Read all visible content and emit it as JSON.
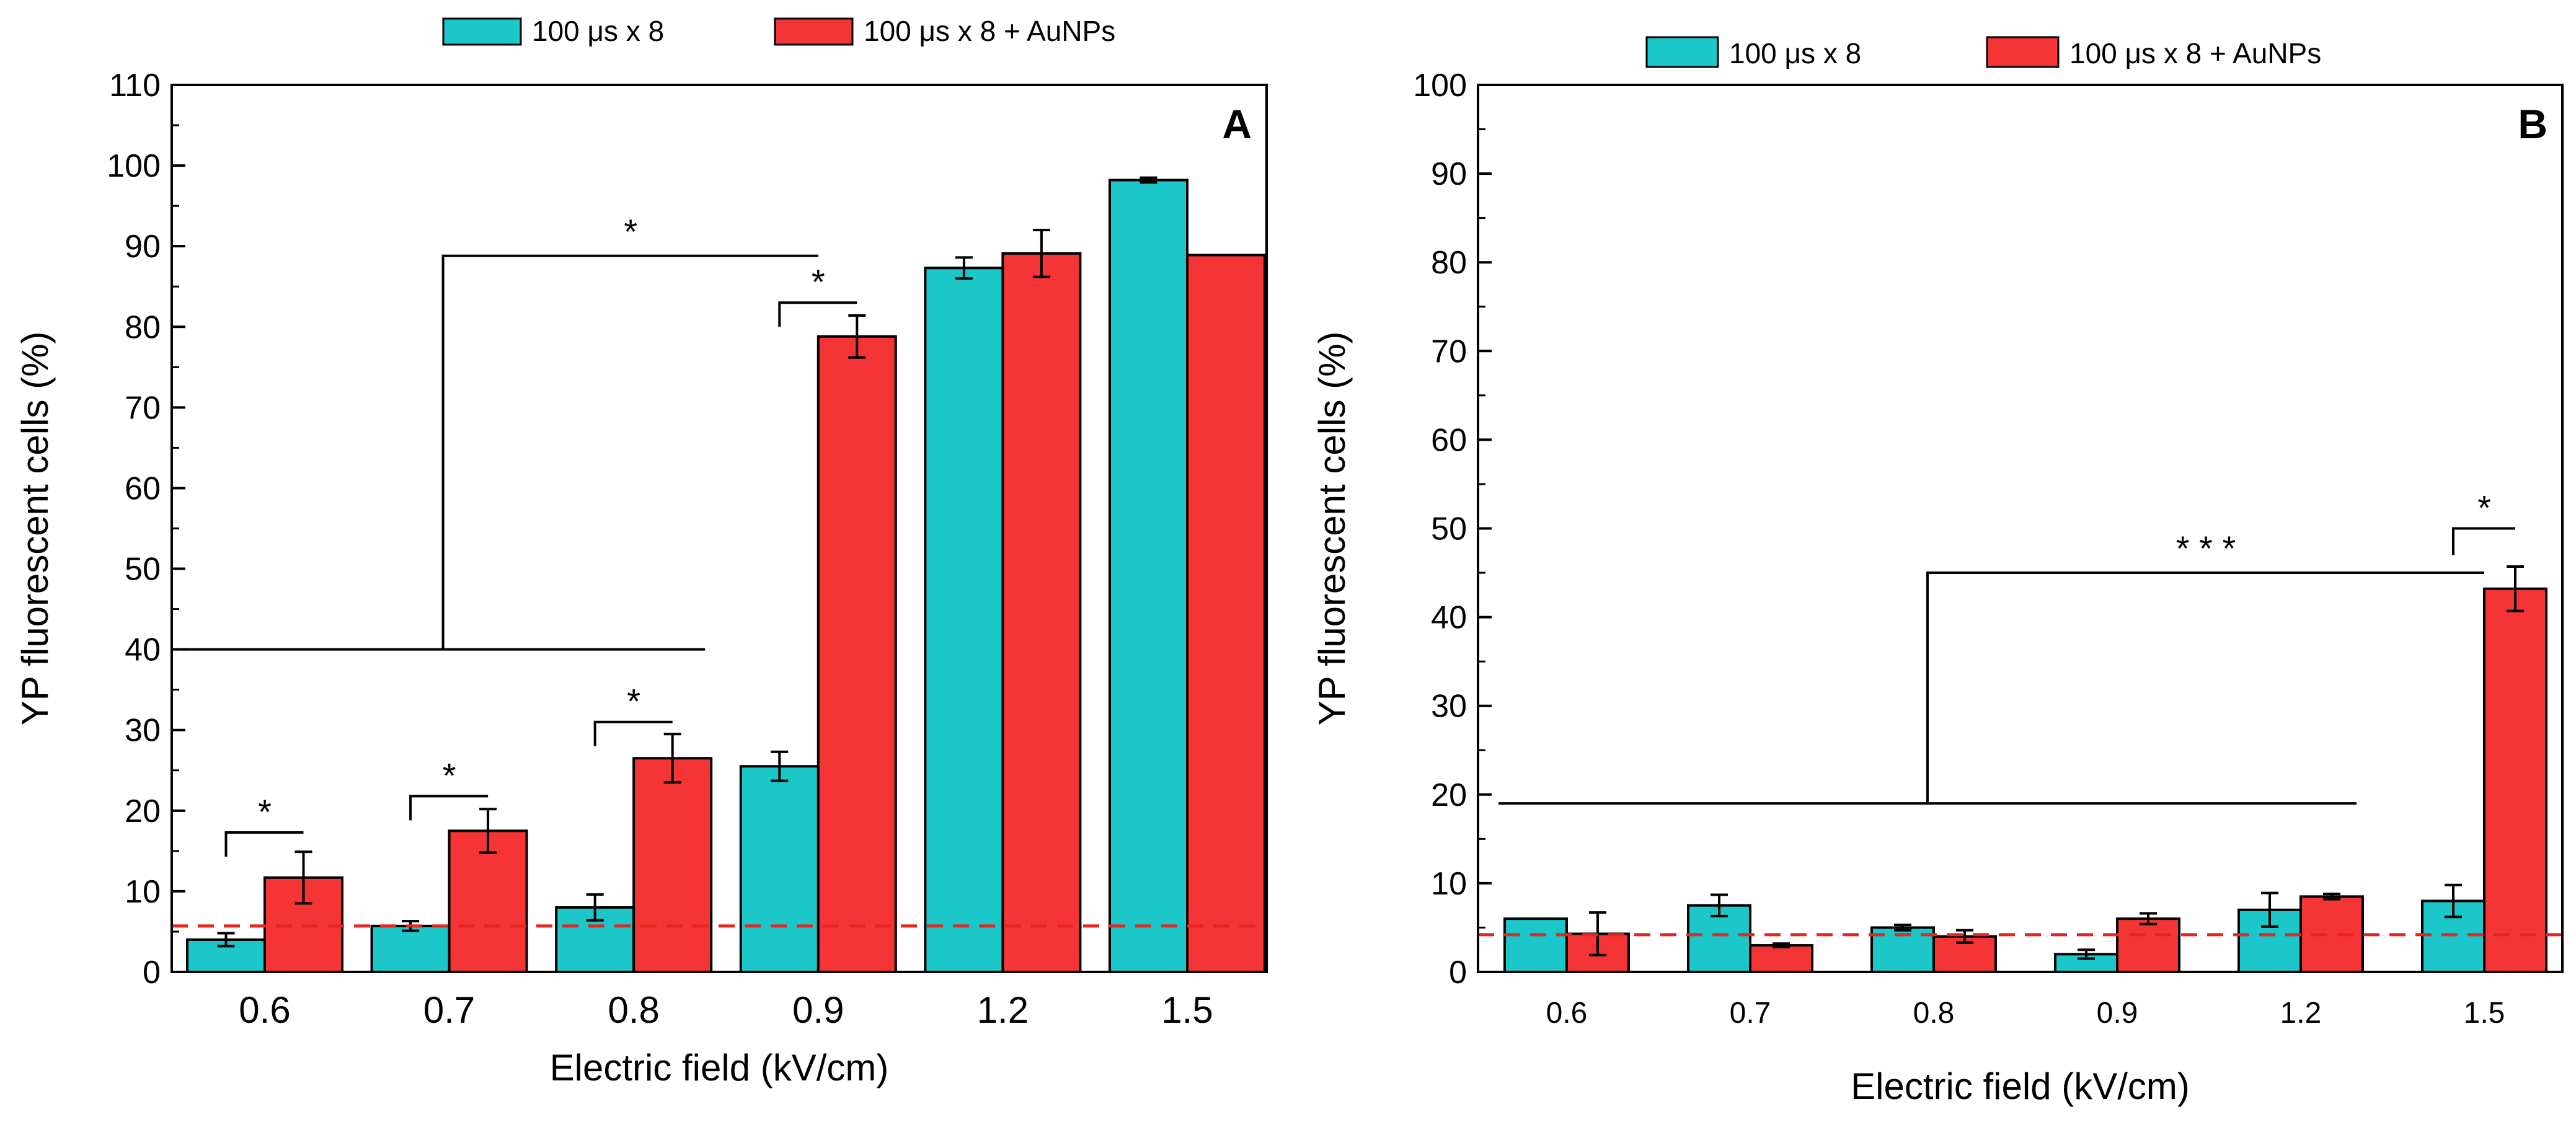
{
  "chart_data": [
    {
      "panel": "A",
      "type": "bar",
      "xlabel": "Electric field (kV/cm)",
      "ylabel": "YP fluorescent cells (%)",
      "ylim": [
        0,
        110
      ],
      "ytick_step": 10,
      "yticks": [
        "0",
        "10",
        "20",
        "30",
        "40",
        "50",
        "60",
        "70",
        "80",
        "90",
        "100",
        "110"
      ],
      "categories": [
        "0.6",
        "0.7",
        "0.8",
        "0.9",
        "1.2",
        "1.5"
      ],
      "series": [
        {
          "name": "100 μs x 8",
          "color": "#1BC7C8",
          "values": [
            4,
            5.7,
            8,
            25.5,
            87.3,
            98.2
          ],
          "errors": [
            0.8,
            0.6,
            1.6,
            1.8,
            1.3,
            0.3
          ]
        },
        {
          "name": "100 μs x 8 + AuNPs",
          "color": "#F53535",
          "values": [
            11.7,
            17.5,
            26.5,
            78.8,
            89.1,
            88.9
          ],
          "errors": [
            3.2,
            2.7,
            3,
            2.6,
            2.9,
            0
          ]
        }
      ],
      "baseline": 5.7,
      "annotations": [
        {
          "label": "*",
          "type": "pair",
          "category": 0,
          "y": 17.3
        },
        {
          "label": "*",
          "type": "pair",
          "category": 1,
          "y": 21.8
        },
        {
          "label": "*",
          "type": "pair",
          "category": 2,
          "y": 31
        },
        {
          "label": "*",
          "type": "pair",
          "category": 3,
          "y": 83
        },
        {
          "label": "*",
          "type": "group",
          "from": 0,
          "to": 2,
          "y": 40,
          "target": 3,
          "top": 88.8
        }
      ]
    },
    {
      "panel": "B",
      "type": "bar",
      "xlabel": "Electric field (kV/cm)",
      "ylabel": "YP fluorescent cells (%)",
      "ylim": [
        0,
        100
      ],
      "ytick_step": 10,
      "yticks": [
        "0",
        "10",
        "20",
        "30",
        "40",
        "50",
        "60",
        "70",
        "80",
        "90",
        "100"
      ],
      "categories": [
        "0.6",
        "0.7",
        "0.8",
        "0.9",
        "1.2",
        "1.5"
      ],
      "series": [
        {
          "name": "100 μs x 8",
          "color": "#1BC7C8",
          "values": [
            6,
            7.5,
            5,
            2,
            7,
            8
          ],
          "errors": [
            0,
            1.2,
            0.3,
            0.5,
            1.9,
            1.8
          ]
        },
        {
          "name": "100 μs x 8 + AuNPs",
          "color": "#F53535",
          "values": [
            4.3,
            3,
            4,
            6,
            8.5,
            43.2
          ],
          "errors": [
            2.4,
            0.2,
            0.7,
            0.6,
            0.3,
            2.5
          ]
        }
      ],
      "baseline": 4.2,
      "annotations": [
        {
          "label": "* * *",
          "type": "group",
          "from": 0,
          "to": 4,
          "y": 19,
          "target": 5,
          "top": 45
        },
        {
          "label": "*",
          "type": "pair",
          "category": 5,
          "y": 50
        }
      ]
    }
  ],
  "panels": {
    "A": {
      "label": "A",
      "legend": [
        "100 μs x 8",
        "100 μs x 8 + AuNPs"
      ]
    },
    "B": {
      "label": "B",
      "legend": [
        "100 μs x 8",
        "100 μs x 8 + AuNPs"
      ]
    }
  },
  "colors": {
    "teal": "#1BC7C8",
    "red": "#F53535",
    "baseline": "#E8251F"
  }
}
